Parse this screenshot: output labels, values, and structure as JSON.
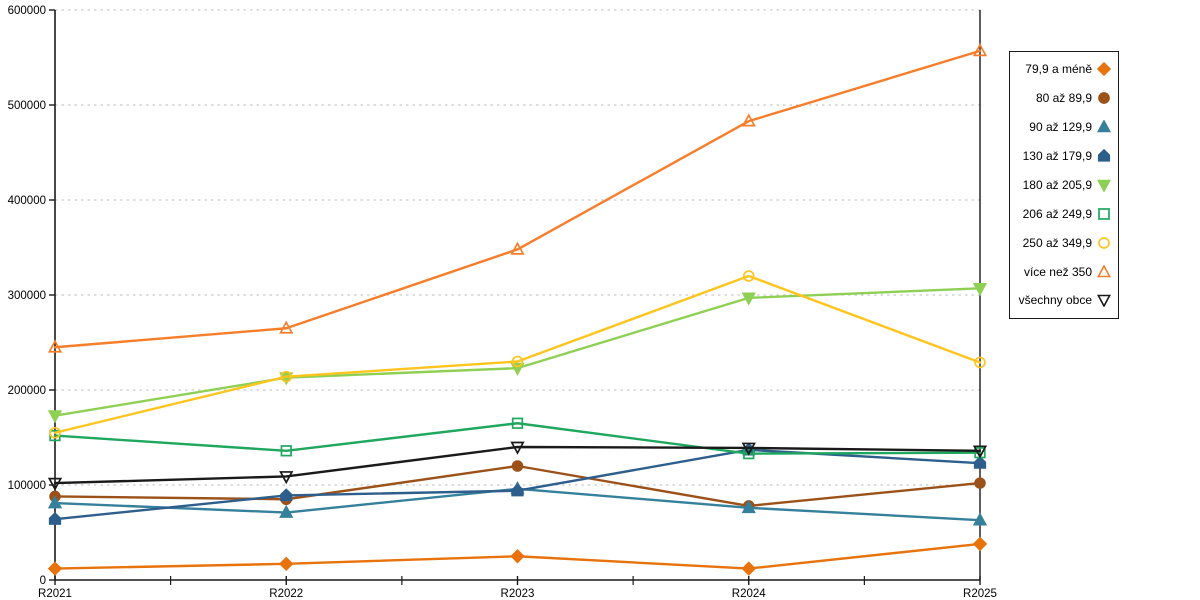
{
  "chart_data": {
    "type": "line",
    "title": "",
    "xlabel": "",
    "ylabel": "",
    "x_categories": [
      "R2021",
      "R2022",
      "R2023",
      "R2024",
      "R2025"
    ],
    "ylim": [
      0,
      600000
    ],
    "ytick_step": 100000,
    "ytick_labels": [
      "0",
      "100000",
      "200000",
      "300000",
      "400000",
      "500000",
      "600000"
    ],
    "grid": "horizontal-dotted",
    "legend_position": "right",
    "axis_color": "#1a1a1a",
    "gridline_color": "#c9c9c9",
    "series": [
      {
        "name": "79,9 a méně",
        "color": "#e8720c",
        "marker": "diamond",
        "marker_fill": "solid",
        "values": [
          12000,
          17000,
          25000,
          12000,
          38000
        ]
      },
      {
        "name": "80 až 89,9",
        "color": "#9c5118",
        "marker": "circle",
        "marker_fill": "solid",
        "values": [
          88000,
          85000,
          120000,
          78000,
          102000
        ]
      },
      {
        "name": "90 až 129,9",
        "color": "#35809b",
        "marker": "triangle-up",
        "marker_fill": "solid",
        "values": [
          81000,
          71000,
          96000,
          76000,
          63000
        ]
      },
      {
        "name": "130 až 179,9",
        "color": "#2e5e8c",
        "marker": "pentagon",
        "marker_fill": "solid",
        "values": [
          64000,
          89000,
          94000,
          137000,
          123000
        ]
      },
      {
        "name": "180 až 205,9",
        "color": "#8ed053",
        "marker": "triangle-down",
        "marker_fill": "solid",
        "values": [
          173000,
          213000,
          223000,
          297000,
          307000
        ]
      },
      {
        "name": "206 až 249,9",
        "color": "#1fa75e",
        "marker": "square",
        "marker_fill": "open",
        "values": [
          152000,
          136000,
          165000,
          133000,
          134000
        ]
      },
      {
        "name": "250 až 349,9",
        "color": "#ffc41e",
        "marker": "circle",
        "marker_fill": "open",
        "values": [
          155000,
          214000,
          230000,
          320000,
          229000
        ]
      },
      {
        "name": "více než 350",
        "color": "#f87d2a",
        "marker": "triangle-up",
        "marker_fill": "open",
        "values": [
          245000,
          265000,
          348000,
          483000,
          557000
        ]
      },
      {
        "name": "všechny obce",
        "color": "#1a1a1a",
        "marker": "triangle-down",
        "marker_fill": "open",
        "values": [
          102000,
          109000,
          140000,
          139000,
          136000
        ]
      }
    ]
  }
}
